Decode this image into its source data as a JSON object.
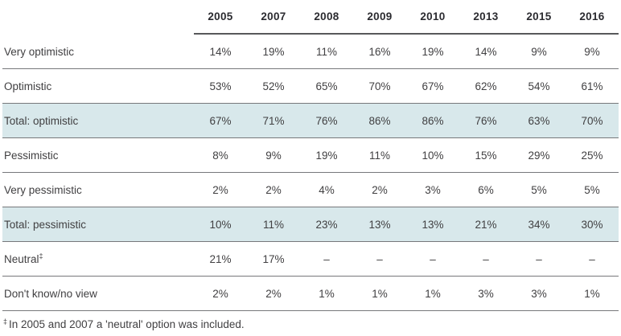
{
  "table": {
    "columns": [
      "2005",
      "2007",
      "2008",
      "2009",
      "2010",
      "2013",
      "2015",
      "2016"
    ],
    "rows": [
      {
        "label": "Very optimistic",
        "values": [
          "14%",
          "19%",
          "11%",
          "16%",
          "19%",
          "14%",
          "9%",
          "9%"
        ],
        "highlight": false
      },
      {
        "label": "Optimistic",
        "values": [
          "53%",
          "52%",
          "65%",
          "70%",
          "67%",
          "62%",
          "54%",
          "61%"
        ],
        "highlight": false
      },
      {
        "label": "Total: optimistic",
        "values": [
          "67%",
          "71%",
          "76%",
          "86%",
          "86%",
          "76%",
          "63%",
          "70%"
        ],
        "highlight": true
      },
      {
        "label": "Pessimistic",
        "values": [
          "8%",
          "9%",
          "19%",
          "11%",
          "10%",
          "15%",
          "29%",
          "25%"
        ],
        "highlight": false
      },
      {
        "label": "Very pessimistic",
        "values": [
          "2%",
          "2%",
          "4%",
          "2%",
          "3%",
          "6%",
          "5%",
          "5%"
        ],
        "highlight": false
      },
      {
        "label": "Total: pessimistic",
        "values": [
          "10%",
          "11%",
          "23%",
          "13%",
          "13%",
          "21%",
          "34%",
          "30%"
        ],
        "highlight": true
      },
      {
        "label": "Neutral",
        "label_superscript": "‡",
        "values": [
          "21%",
          "17%",
          "–",
          "–",
          "–",
          "–",
          "–",
          "–"
        ],
        "highlight": false
      },
      {
        "label": "Don't know/no view",
        "values": [
          "2%",
          "2%",
          "1%",
          "1%",
          "1%",
          "3%",
          "3%",
          "1%"
        ],
        "highlight": false
      }
    ],
    "footnote_marker": "‡",
    "footnote_text": "In 2005 and 2007 a 'neutral' option was included."
  },
  "colors": {
    "highlight_row_background": "#d8e8eb",
    "header_rule": "#58595b",
    "row_separator": "#77787b",
    "header_text": "#2b2b30",
    "body_text": "#414042"
  },
  "chart_data": {
    "type": "table",
    "title": "",
    "categories": [
      "2005",
      "2007",
      "2008",
      "2009",
      "2010",
      "2013",
      "2015",
      "2016"
    ],
    "unit": "%",
    "series": [
      {
        "name": "Very optimistic",
        "values": [
          14,
          19,
          11,
          16,
          19,
          14,
          9,
          9
        ]
      },
      {
        "name": "Optimistic",
        "values": [
          53,
          52,
          65,
          70,
          67,
          62,
          54,
          61
        ]
      },
      {
        "name": "Total: optimistic",
        "values": [
          67,
          71,
          76,
          86,
          86,
          76,
          63,
          70
        ],
        "highlighted": true
      },
      {
        "name": "Pessimistic",
        "values": [
          8,
          9,
          19,
          11,
          10,
          15,
          29,
          25
        ]
      },
      {
        "name": "Very pessimistic",
        "values": [
          2,
          2,
          4,
          2,
          3,
          6,
          5,
          5
        ]
      },
      {
        "name": "Total: pessimistic",
        "values": [
          10,
          11,
          23,
          13,
          13,
          21,
          34,
          30
        ],
        "highlighted": true
      },
      {
        "name": "Neutral",
        "values": [
          21,
          17,
          null,
          null,
          null,
          null,
          null,
          null
        ]
      },
      {
        "name": "Don't know/no view",
        "values": [
          2,
          2,
          1,
          1,
          1,
          3,
          3,
          1
        ]
      }
    ],
    "footnote": "‡ In 2005 and 2007 a 'neutral' option was included."
  }
}
